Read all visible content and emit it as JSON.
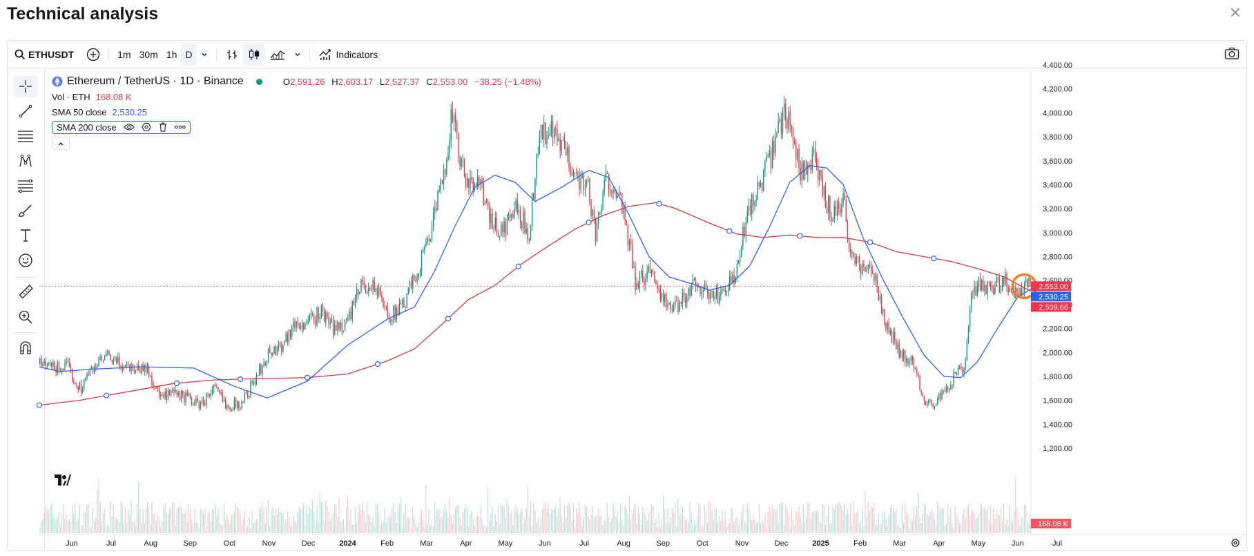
{
  "page": {
    "title": "Technical analysis"
  },
  "toolbar": {
    "symbol": "ETHUSDT",
    "intervals": [
      "1m",
      "30m",
      "1h",
      "D"
    ],
    "active_interval": "D",
    "indicators_label": "Indicators"
  },
  "legend": {
    "title": "Ethereum / TetherUS · 1D · Binance",
    "ohlc": {
      "o_label": "O",
      "o": "2,591.26",
      "h_label": "H",
      "h": "2,603.17",
      "l_label": "L",
      "l": "2,527.37",
      "c_label": "C",
      "c": "2,553.00",
      "change": "−38.25 (−1.48%)"
    },
    "vol_label": "Vol · ETH",
    "vol_value": "168.08 K",
    "sma50_label": "SMA 50 close",
    "sma50_value": "2,530.25",
    "sma200_label": "SMA 200 close"
  },
  "colors": {
    "down": "#f23645",
    "up": "#089981",
    "sma50": "#2962ff",
    "sma200": "#d43b4a",
    "accent": "#2962ff",
    "highlight": "#f57c1f"
  },
  "chart_data": {
    "type": "candlestick",
    "price_axis": {
      "ticks": [
        "4,400.00",
        "4,200.00",
        "4,000.00",
        "3,800.00",
        "3,600.00",
        "3,400.00",
        "3,200.00",
        "3,000.00",
        "2,800.00",
        "2,600.00",
        "2,400.00",
        "2,200.00",
        "2,000.00",
        "1,800.00",
        "1,600.00",
        "1,400.00",
        "1,200.00"
      ],
      "range": [
        1200,
        4400
      ]
    },
    "time_axis": {
      "ticks": [
        "Jun",
        "Jul",
        "Aug",
        "Sep",
        "Oct",
        "Nov",
        "Dec",
        "2024",
        "Feb",
        "Mar",
        "Apr",
        "May",
        "Jun",
        "Jul",
        "Aug",
        "Sep",
        "Oct",
        "Nov",
        "Dec",
        "2025",
        "Feb",
        "Mar",
        "Apr",
        "May",
        "Jun",
        "Jul"
      ],
      "bold_ticks": [
        "2024",
        "2025"
      ]
    },
    "price_labels": [
      {
        "name": "close",
        "text": "2,553.00",
        "value": 2553,
        "color": "#f23645"
      },
      {
        "name": "sma50",
        "text": "2,530.25",
        "value": 2530.25,
        "color": "#2962ff"
      },
      {
        "name": "sma200",
        "text": "2,509.66",
        "value": 2509.66,
        "color": "#f23645"
      }
    ],
    "volume_label": {
      "text": "168.08 K",
      "color": "#f7525f"
    },
    "price_path": [
      [
        0,
        1900
      ],
      [
        20,
        1870
      ],
      [
        40,
        1880
      ],
      [
        60,
        1700
      ],
      [
        80,
        1880
      ],
      [
        100,
        1960
      ],
      [
        120,
        1900
      ],
      [
        140,
        1880
      ],
      [
        160,
        1860
      ],
      [
        180,
        1620
      ],
      [
        200,
        1650
      ],
      [
        220,
        1620
      ],
      [
        240,
        1560
      ],
      [
        260,
        1700
      ],
      [
        280,
        1560
      ],
      [
        300,
        1570
      ],
      [
        320,
        1760
      ],
      [
        340,
        1980
      ],
      [
        360,
        2060
      ],
      [
        380,
        2230
      ],
      [
        400,
        2240
      ],
      [
        420,
        2340
      ],
      [
        440,
        2190
      ],
      [
        460,
        2270
      ],
      [
        480,
        2560
      ],
      [
        500,
        2550
      ],
      [
        520,
        2310
      ],
      [
        540,
        2360
      ],
      [
        560,
        2620
      ],
      [
        580,
        2960
      ],
      [
        600,
        3380
      ],
      [
        615,
        4000
      ],
      [
        625,
        3650
      ],
      [
        640,
        3350
      ],
      [
        655,
        3500
      ],
      [
        670,
        3100
      ],
      [
        690,
        3000
      ],
      [
        710,
        3200
      ],
      [
        730,
        3000
      ],
      [
        745,
        3800
      ],
      [
        760,
        3850
      ],
      [
        780,
        3700
      ],
      [
        800,
        3500
      ],
      [
        820,
        3350
      ],
      [
        830,
        2950
      ],
      [
        845,
        3450
      ],
      [
        860,
        3400
      ],
      [
        880,
        2900
      ],
      [
        890,
        2550
      ],
      [
        910,
        2700
      ],
      [
        920,
        2600
      ],
      [
        935,
        2400
      ],
      [
        945,
        2350
      ],
      [
        960,
        2450
      ],
      [
        980,
        2600
      ],
      [
        1000,
        2450
      ],
      [
        1020,
        2500
      ],
      [
        1040,
        2650
      ],
      [
        1055,
        3150
      ],
      [
        1075,
        3400
      ],
      [
        1090,
        3600
      ],
      [
        1110,
        4000
      ],
      [
        1120,
        3950
      ],
      [
        1135,
        3500
      ],
      [
        1155,
        3600
      ],
      [
        1170,
        3300
      ],
      [
        1185,
        3150
      ],
      [
        1200,
        3300
      ],
      [
        1210,
        2800
      ],
      [
        1230,
        2700
      ],
      [
        1250,
        2600
      ],
      [
        1255,
        2350
      ],
      [
        1275,
        2100
      ],
      [
        1290,
        1950
      ],
      [
        1305,
        1900
      ],
      [
        1320,
        1600
      ],
      [
        1335,
        1580
      ],
      [
        1350,
        1650
      ],
      [
        1365,
        1800
      ],
      [
        1380,
        1850
      ],
      [
        1390,
        2450
      ],
      [
        1400,
        2550
      ],
      [
        1420,
        2550
      ],
      [
        1440,
        2600
      ],
      [
        1455,
        2450
      ],
      [
        1470,
        2600
      ],
      [
        1480,
        2553
      ]
    ],
    "sma50_path": [
      [
        0,
        1880
      ],
      [
        30,
        1840
      ],
      [
        80,
        1860
      ],
      [
        150,
        1880
      ],
      [
        230,
        1870
      ],
      [
        290,
        1720
      ],
      [
        340,
        1620
      ],
      [
        400,
        1760
      ],
      [
        460,
        2060
      ],
      [
        520,
        2280
      ],
      [
        560,
        2380
      ],
      [
        590,
        2680
      ],
      [
        620,
        3050
      ],
      [
        650,
        3380
      ],
      [
        680,
        3480
      ],
      [
        710,
        3420
      ],
      [
        740,
        3260
      ],
      [
        780,
        3380
      ],
      [
        820,
        3520
      ],
      [
        850,
        3460
      ],
      [
        880,
        3150
      ],
      [
        910,
        2800
      ],
      [
        940,
        2630
      ],
      [
        970,
        2580
      ],
      [
        1000,
        2520
      ],
      [
        1030,
        2560
      ],
      [
        1060,
        2720
      ],
      [
        1090,
        3050
      ],
      [
        1120,
        3420
      ],
      [
        1150,
        3560
      ],
      [
        1175,
        3540
      ],
      [
        1200,
        3400
      ],
      [
        1230,
        2950
      ],
      [
        1260,
        2600
      ],
      [
        1290,
        2280
      ],
      [
        1320,
        1980
      ],
      [
        1350,
        1800
      ],
      [
        1375,
        1790
      ],
      [
        1400,
        1920
      ],
      [
        1430,
        2200
      ],
      [
        1460,
        2460
      ],
      [
        1480,
        2530
      ]
    ],
    "sma200_path": [
      [
        0,
        1560
      ],
      [
        60,
        1600
      ],
      [
        140,
        1680
      ],
      [
        200,
        1740
      ],
      [
        260,
        1770
      ],
      [
        320,
        1780
      ],
      [
        400,
        1790
      ],
      [
        460,
        1820
      ],
      [
        520,
        1930
      ],
      [
        560,
        2030
      ],
      [
        600,
        2230
      ],
      [
        640,
        2440
      ],
      [
        680,
        2560
      ],
      [
        720,
        2740
      ],
      [
        760,
        2890
      ],
      [
        800,
        3030
      ],
      [
        840,
        3140
      ],
      [
        880,
        3220
      ],
      [
        920,
        3250
      ],
      [
        950,
        3200
      ],
      [
        1000,
        3080
      ],
      [
        1040,
        2990
      ],
      [
        1080,
        2960
      ],
      [
        1120,
        2980
      ],
      [
        1160,
        2960
      ],
      [
        1200,
        2960
      ],
      [
        1240,
        2920
      ],
      [
        1280,
        2840
      ],
      [
        1320,
        2800
      ],
      [
        1360,
        2760
      ],
      [
        1400,
        2700
      ],
      [
        1440,
        2630
      ],
      [
        1480,
        2510
      ]
    ]
  }
}
